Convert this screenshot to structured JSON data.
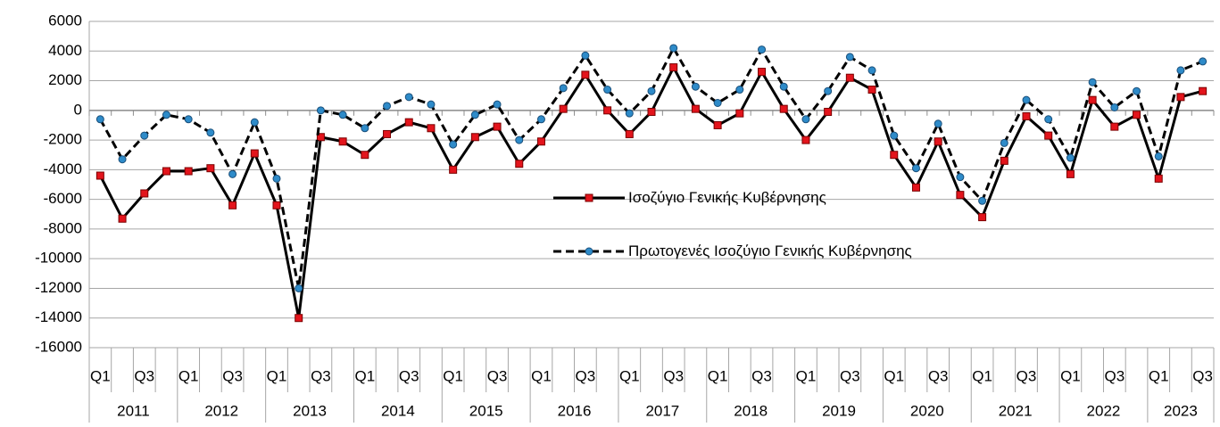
{
  "chart_data": {
    "type": "line",
    "categories": [
      "Q1",
      null,
      "Q3",
      null,
      "Q1",
      null,
      "Q3",
      null,
      "Q1",
      null,
      "Q3",
      null,
      "Q1",
      null,
      "Q3",
      null,
      "Q1",
      null,
      "Q3",
      null,
      "Q1",
      null,
      "Q3",
      null,
      "Q1",
      null,
      "Q3",
      null,
      "Q1",
      null,
      "Q3",
      null,
      "Q1",
      null,
      "Q3",
      null,
      "Q1",
      null,
      "Q3",
      null,
      "Q1",
      null,
      "Q3",
      null,
      "Q1",
      null,
      "Q3",
      null,
      "Q1",
      null,
      "Q3"
    ],
    "years": [
      "2011",
      "2012",
      "2013",
      "2014",
      "2015",
      "2016",
      "2017",
      "2018",
      "2019",
      "2020",
      "2021",
      "2022",
      "2023"
    ],
    "series": [
      {
        "name": "Ισοζύγιο Γενικής Κυβέρνησης",
        "color": "#e3141c",
        "line_style": "solid",
        "values": [
          -4400,
          -7300,
          -5600,
          -4100,
          -4100,
          -3900,
          -6400,
          -2900,
          -6400,
          -14000,
          -1800,
          -2100,
          -3000,
          -1600,
          -800,
          -1200,
          -4000,
          -1800,
          -1100,
          -3600,
          -2100,
          100,
          2400,
          0,
          -1600,
          -100,
          2900,
          100,
          -1000,
          -200,
          2600,
          100,
          -2000,
          -100,
          2200,
          1400,
          -3000,
          -5200,
          -2100,
          -5700,
          -7200,
          -3400,
          -400,
          -1700,
          -4300,
          700,
          -1100,
          -300,
          -4600,
          900,
          1300
        ]
      },
      {
        "name": "Πρωτογενές Ισοζύγιο Γενικής Κυβέρνησης",
        "color": "#2e8bc9",
        "line_style": "dashed",
        "values": [
          -600,
          -3300,
          -1700,
          -300,
          -600,
          -1500,
          -4300,
          -800,
          -4600,
          -12000,
          0,
          -300,
          -1200,
          300,
          900,
          400,
          -2300,
          -300,
          400,
          -2000,
          -600,
          1500,
          3700,
          1400,
          -200,
          1300,
          4200,
          1600,
          500,
          1400,
          4100,
          1600,
          -600,
          1300,
          3600,
          2700,
          -1700,
          -3900,
          -900,
          -4500,
          -6100,
          -2200,
          700,
          -600,
          -3200,
          1900,
          200,
          1300,
          -3100,
          2700,
          3300
        ]
      }
    ],
    "ylim": [
      -16000,
      6000
    ],
    "yticks": [
      -16000,
      -14000,
      -12000,
      -10000,
      -8000,
      -6000,
      -4000,
      -2000,
      0,
      2000,
      4000,
      6000
    ],
    "grid": true
  }
}
